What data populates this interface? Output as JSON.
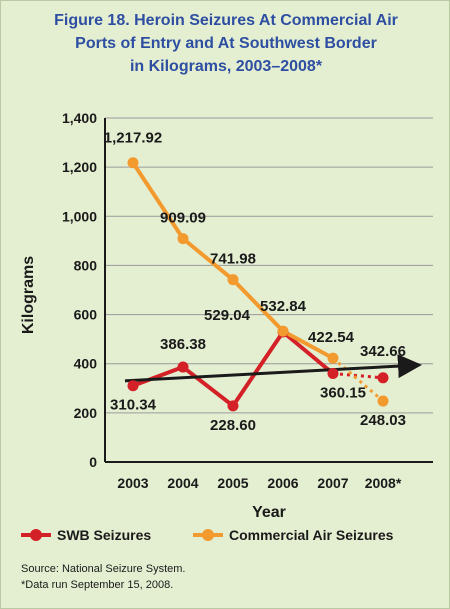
{
  "title": "Figure 18. Heroin Seizures At Commercial Air\nPorts of Entry and At Southwest Border\nin Kilograms, 2003–2008*",
  "colors": {
    "panel": "#e4efd2",
    "title": "#2e4ea1",
    "swb": "#d42027",
    "air": "#f39a2e",
    "trend": "#1a1a1a"
  },
  "chart_data": {
    "type": "line",
    "title": "Figure 18. Heroin Seizures At Commercial Air Ports of Entry and At Southwest Border in Kilograms, 2003–2008*",
    "xlabel": "Year",
    "ylabel": "Kilograms",
    "categories": [
      "2003",
      "2004",
      "2005",
      "2006",
      "2007",
      "2008*"
    ],
    "ylim": [
      0,
      1400
    ],
    "yticks": [
      "0",
      "200",
      "400",
      "600",
      "800",
      "1,000",
      "1,200",
      "1,400"
    ],
    "grid": true,
    "legend_position": "bottom",
    "series": [
      {
        "name": "SWB Seizures",
        "values": [
          310.34,
          386.38,
          228.6,
          529.04,
          360.15,
          342.66
        ],
        "labels": [
          "310.34",
          "386.38",
          "228.60",
          "529.04",
          "360.15",
          "342.66"
        ],
        "last_segment": "dotted"
      },
      {
        "name": "Commercial Air Seizures",
        "values": [
          1217.92,
          909.09,
          741.98,
          532.84,
          422.54,
          248.03
        ],
        "labels": [
          "1,217.92",
          "909.09",
          "741.98",
          "532.84",
          "422.54",
          "248.03"
        ],
        "last_segment": "dotted"
      }
    ],
    "annotations": [
      "trend arrow over SWB Seizures, rising"
    ]
  },
  "legend": {
    "swb": "SWB Seizures",
    "air": "Commercial Air Seizures"
  },
  "notes": {
    "source": "Source: National Seizure System.",
    "footnote": "*Data run September 15, 2008."
  }
}
